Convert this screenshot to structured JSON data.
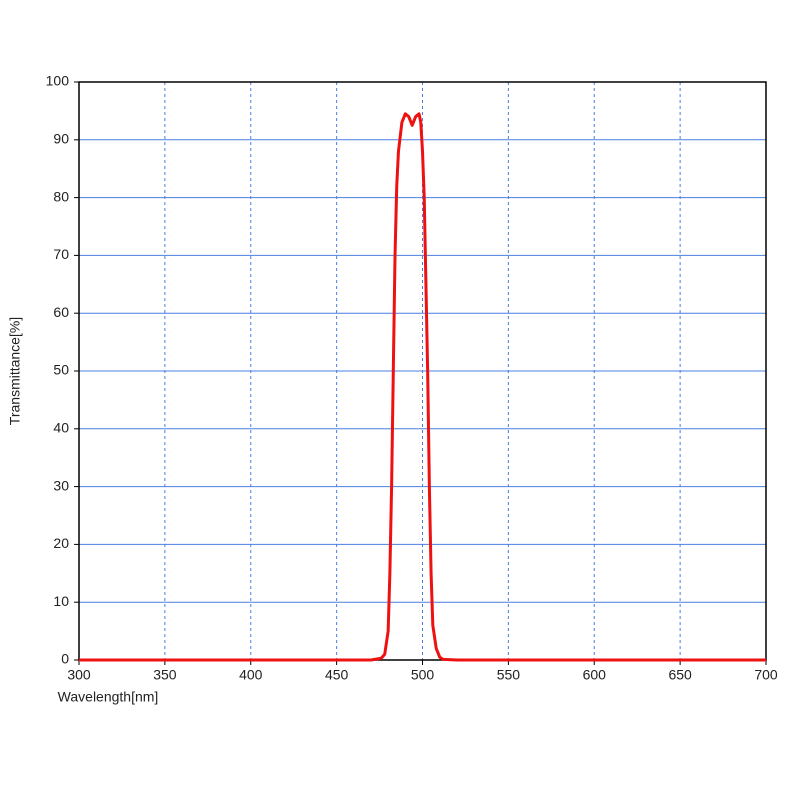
{
  "chart_data": {
    "type": "line",
    "x_label": "Wavelength[nm]",
    "y_label": "Transmittance[%]",
    "series": [
      {
        "name": "Transmittance",
        "color": "#ee1111",
        "x": [
          300,
          360,
          470,
          476,
          478,
          480,
          481,
          482,
          483,
          484,
          485,
          486,
          488,
          490,
          492,
          494,
          496,
          498,
          499,
          500,
          501,
          502,
          503,
          504,
          505,
          506,
          508,
          510,
          512,
          520,
          700
        ],
        "values": [
          0,
          0,
          0,
          0.3,
          1,
          5,
          15,
          30,
          50,
          70,
          82,
          88,
          93,
          94.5,
          94,
          92.5,
          94,
          94.5,
          93,
          88,
          80,
          65,
          50,
          30,
          15,
          6,
          2,
          0.5,
          0.1,
          0,
          0
        ]
      }
    ],
    "xlim": [
      300,
      700
    ],
    "xticks": [
      300,
      350,
      400,
      450,
      500,
      550,
      600,
      650,
      700
    ],
    "ylim": [
      0,
      100
    ],
    "yticks": [
      0,
      10,
      20,
      30,
      40,
      50,
      60,
      70,
      80,
      90,
      100
    ],
    "grid": true
  }
}
